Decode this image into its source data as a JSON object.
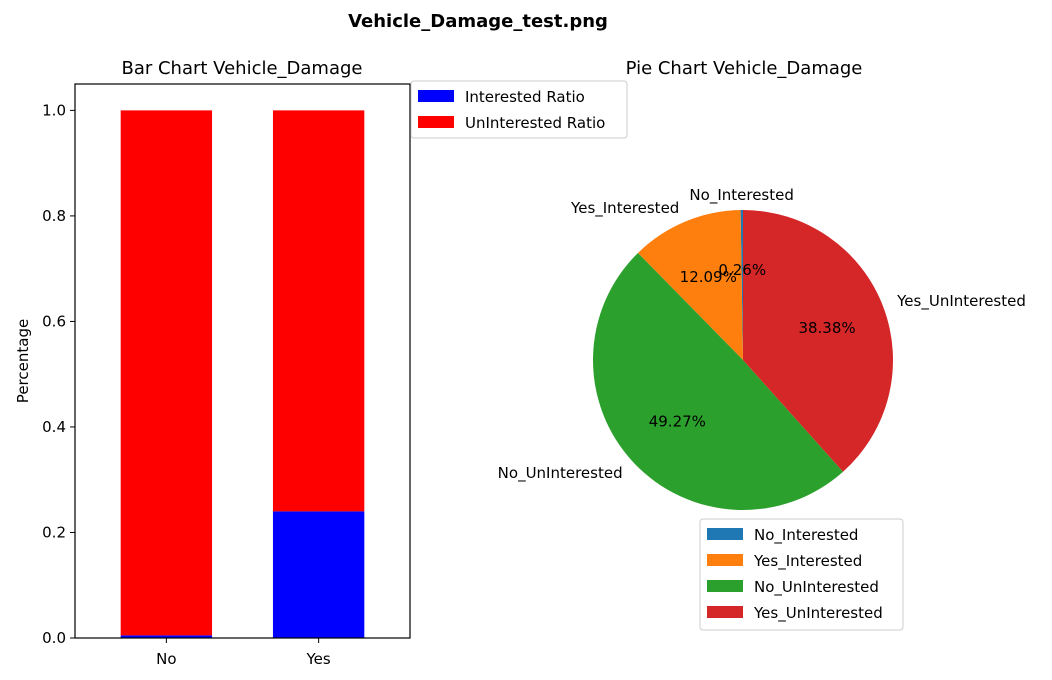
{
  "figure": {
    "suptitle": "Vehicle_Damage_test.png"
  },
  "chart_data": [
    {
      "type": "bar",
      "stacked": true,
      "title": "Bar Chart Vehicle_Damage",
      "xlabel": "",
      "ylabel": "Percentage",
      "categories": [
        "No",
        "Yes"
      ],
      "ylim": [
        0,
        1.05
      ],
      "yticks": [
        0.0,
        0.2,
        0.4,
        0.6,
        0.8,
        1.0
      ],
      "ytick_labels": [
        "0.0",
        "0.2",
        "0.4",
        "0.6",
        "0.8",
        "1.0"
      ],
      "grid": false,
      "legend_placement": "outside-top-right",
      "series": [
        {
          "name": "Interested Ratio",
          "color": "#0000ff",
          "values": [
            0.005,
            0.24
          ]
        },
        {
          "name": "UnInterested Ratio",
          "color": "#ff0000",
          "values": [
            0.995,
            0.76
          ]
        }
      ]
    },
    {
      "type": "pie",
      "title": "Pie Chart Vehicle_Damage",
      "legend_placement": "bottom",
      "slices": [
        {
          "label": "No_Interested",
          "value": 0.26,
          "pct_label": "0.26%",
          "color": "#1f77b4"
        },
        {
          "label": "Yes_Interested",
          "value": 12.09,
          "pct_label": "12.09%",
          "color": "#ff7f0e"
        },
        {
          "label": "No_UnInterested",
          "value": 49.27,
          "pct_label": "49.27%",
          "color": "#2ca02c"
        },
        {
          "label": "Yes_UnInterested",
          "value": 38.38,
          "pct_label": "38.38%",
          "color": "#d62728"
        }
      ]
    }
  ]
}
